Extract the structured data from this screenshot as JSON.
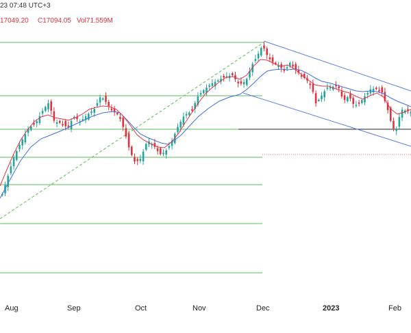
{
  "header": {
    "datetime": "23 07:48 UTC+3",
    "low_label": "17049.20",
    "close_label": "C17094.05",
    "volume_label": "Vol71.559M"
  },
  "colors": {
    "bull": "#26a69a",
    "bear": "#e0323c",
    "ma_fast": "#e8334a",
    "ma_slow": "#3f6ee0",
    "channel": "#5d7ce0",
    "fib": "#5cb85c",
    "support": "#222222"
  },
  "chart_data": {
    "type": "candlestick",
    "title": "",
    "x_ticks": [
      "Aug",
      "Sep",
      "Oct",
      "Nov",
      "Dec",
      "2023",
      "Feb"
    ],
    "indicators": [
      "moving average (fast)",
      "moving average (slow)",
      "descending channel",
      "fibonacci retracement levels",
      "horizontal support line"
    ],
    "grid": false
  }
}
